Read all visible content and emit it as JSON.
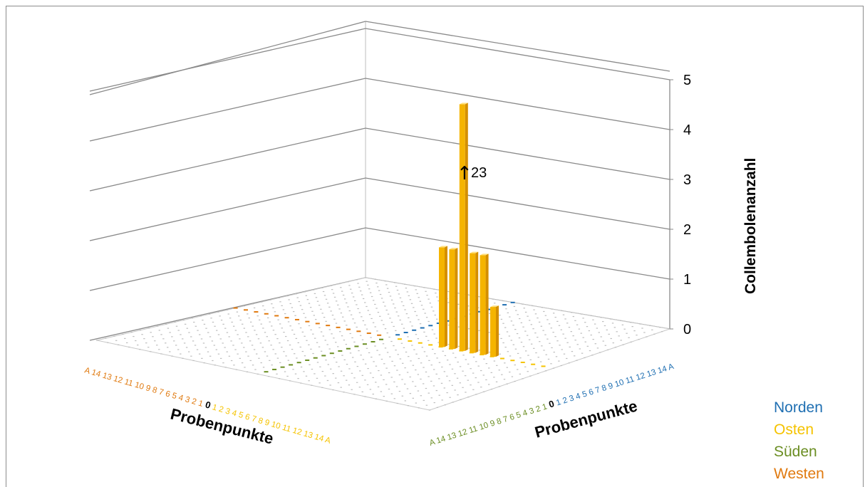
{
  "chart_data": {
    "type": "bar",
    "title": "",
    "zlabel": "Collembolenanzahl",
    "zlim": [
      0,
      5
    ],
    "z_ticks": [
      "0",
      "1",
      "2",
      "3",
      "4",
      "5"
    ],
    "axes": {
      "left_axis": {
        "label": "Probenpunkte",
        "westen_ticks": [
          "A",
          "14",
          "13",
          "12",
          "11",
          "10",
          "9",
          "8",
          "7",
          "6",
          "5",
          "4",
          "3",
          "2",
          "1"
        ],
        "center_tick": "0",
        "osten_ticks": [
          "1",
          "2",
          "3",
          "4",
          "5",
          "6",
          "7",
          "8",
          "9",
          "10",
          "11",
          "12",
          "13",
          "14",
          "A"
        ]
      },
      "right_axis": {
        "label": "Probenpunkte",
        "sueden_ticks": [
          "A",
          "14",
          "13",
          "12",
          "11",
          "10",
          "9",
          "8",
          "7",
          "6",
          "5",
          "4",
          "3",
          "2",
          "1"
        ],
        "center_tick": "0",
        "norden_ticks": [
          "1",
          "2",
          "3",
          "4",
          "5",
          "6",
          "7",
          "8",
          "9",
          "10",
          "11",
          "12",
          "13",
          "14",
          "A"
        ]
      }
    },
    "series": [
      {
        "name": "Osten",
        "points": [
          {
            "category": "5",
            "value": 2
          },
          {
            "category": "6",
            "value": 2
          },
          {
            "category": "7",
            "value": 23
          },
          {
            "category": "8",
            "value": 2
          },
          {
            "category": "9",
            "value": 2
          },
          {
            "category": "10",
            "value": 1
          }
        ]
      }
    ],
    "annotation": {
      "text": "23",
      "arrow": "↑",
      "target_category": "7"
    },
    "grid": true,
    "legend_position": "bottom-right"
  },
  "legend": [
    {
      "label": "Norden",
      "color": "#1f6fb2"
    },
    {
      "label": "Osten",
      "color": "#f5c300"
    },
    {
      "label": "Süden",
      "color": "#6b8e23"
    },
    {
      "label": "Westen",
      "color": "#e07a10"
    }
  ],
  "colors": {
    "norden": "#1f6fb2",
    "osten": "#f5c300",
    "sueden": "#6b8e23",
    "westen": "#e07a10",
    "bar_face": "#f5b400",
    "bar_side": "#d48f00",
    "bar_top": "#ffe080"
  }
}
